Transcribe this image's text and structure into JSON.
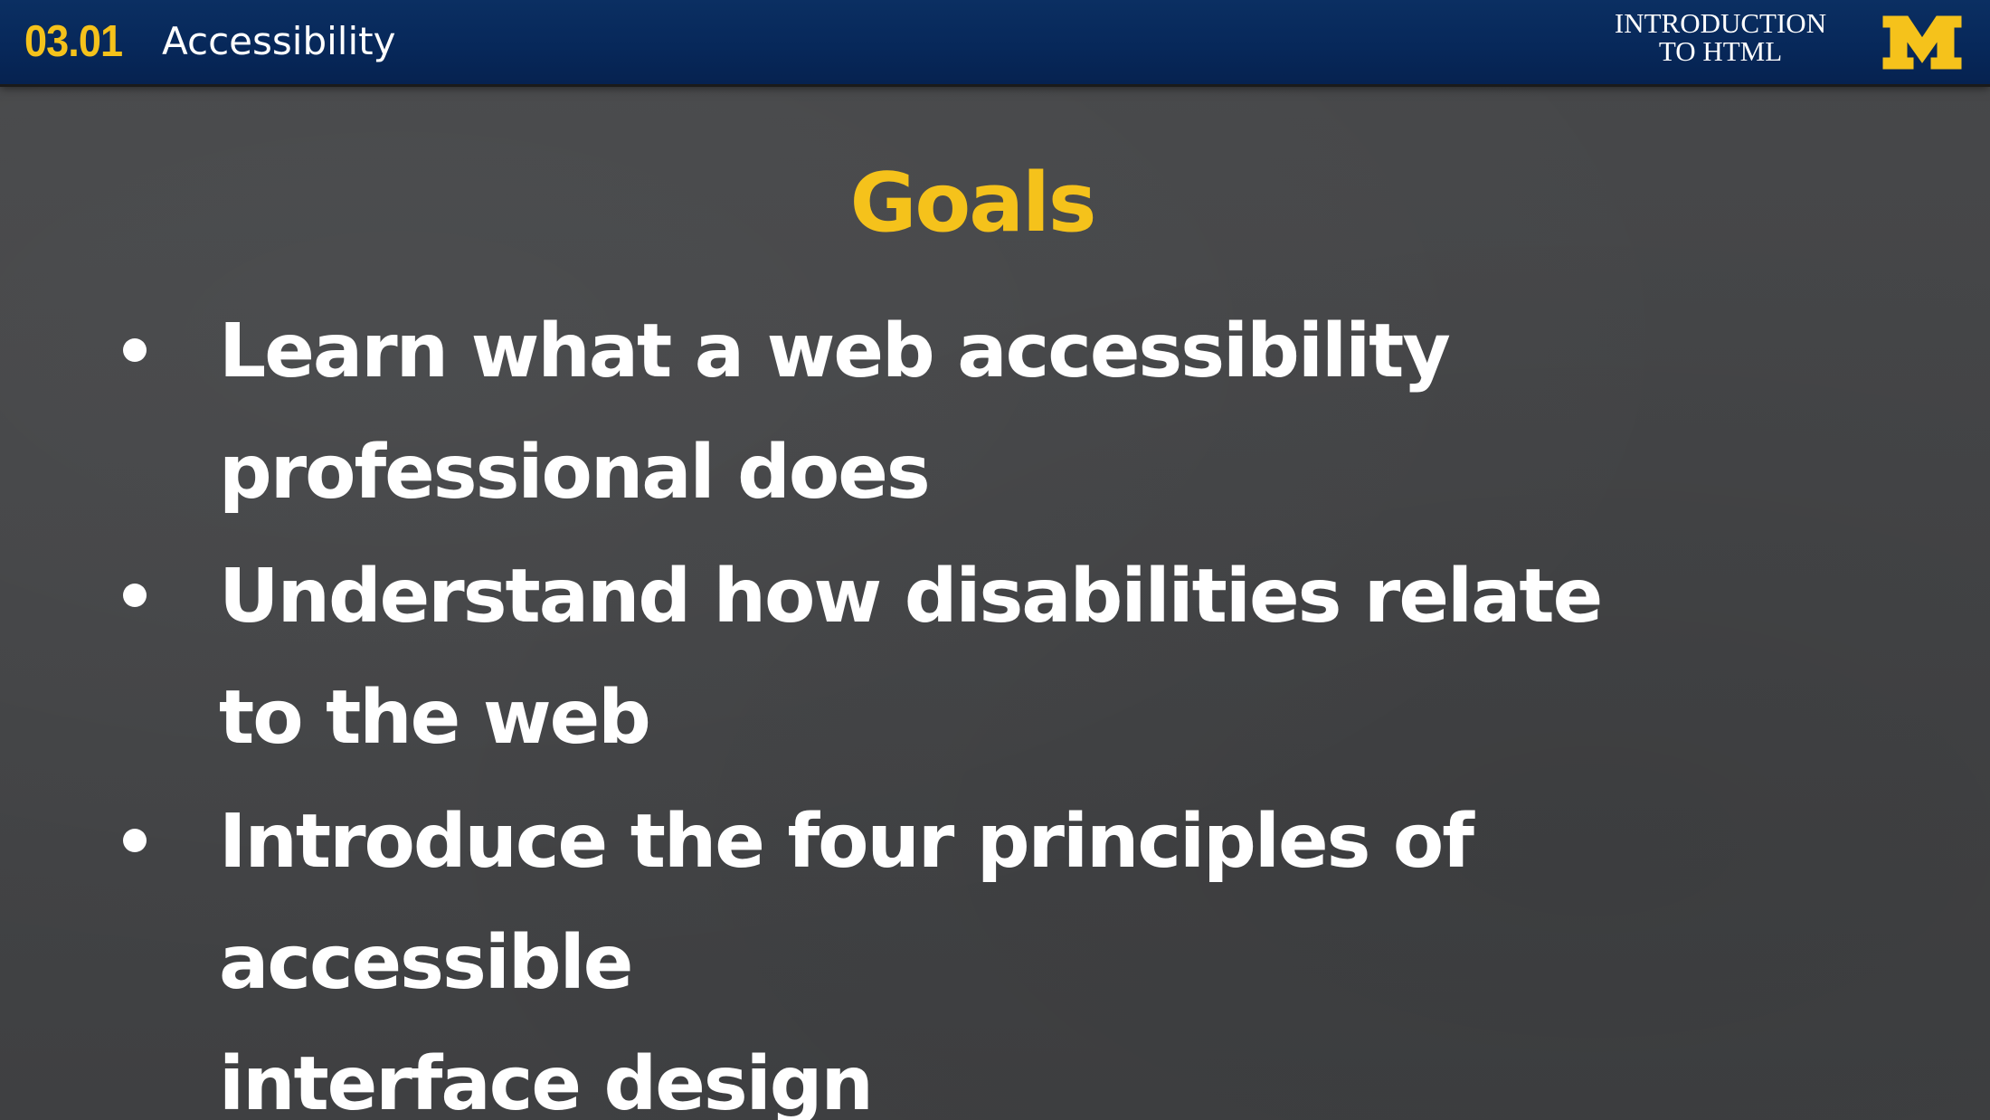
{
  "header": {
    "section_number": "03.01",
    "section_title": "Accessibility",
    "course_title_line1": "INTRODUCTION",
    "course_title_line2": "TO HTML",
    "logo_letter": "M",
    "logo_icon": "university-m-logo-icon",
    "background_color": "#07285a",
    "accent_color": "#f5c21b"
  },
  "slide": {
    "title": "Goals",
    "bullets": [
      {
        "line1": "Learn what a web accessibility",
        "line2": "professional does"
      },
      {
        "line1": "Understand how disabilities relate",
        "line2": "to the web"
      },
      {
        "line1": "Introduce the four principles of accessible",
        "line2": "interface design"
      }
    ],
    "background_color": "#444446",
    "title_color": "#f5c21b",
    "text_color": "#ffffff"
  }
}
